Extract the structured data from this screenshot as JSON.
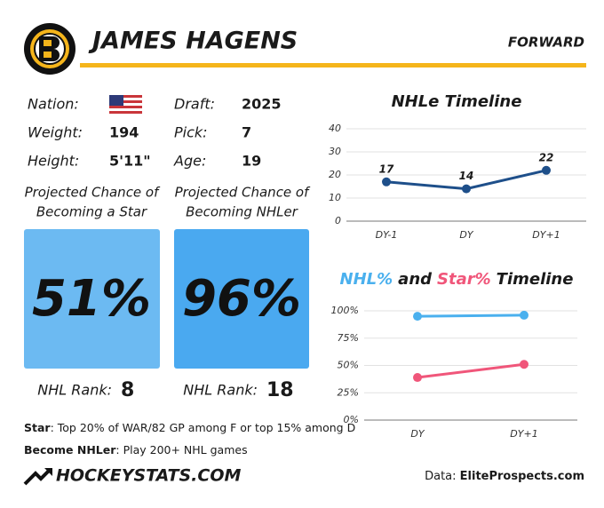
{
  "header": {
    "title": "JAMES HAGENS",
    "position": "FORWARD"
  },
  "bio": [
    {
      "label": "Nation:"
    },
    {
      "label": "Draft:",
      "value": 2025
    },
    {
      "label": "Weight:",
      "value": 194
    },
    {
      "label": "Pick:",
      "value": 7
    },
    {
      "label": "Height:",
      "value": "5'11\""
    },
    {
      "label": "Age:",
      "value": 19
    }
  ],
  "cards": [
    {
      "caption": [
        "Projected Chance of",
        "Becoming a Star"
      ],
      "value": "51%",
      "rank_label": "NHL Rank:",
      "rank": 8,
      "color": "#6cbaf2"
    },
    {
      "caption": [
        "Projected Chance of",
        "Becoming NHLer"
      ],
      "value": "96%",
      "rank_label": "NHL Rank:",
      "rank": 18,
      "color": "#4aa9f0"
    }
  ],
  "notes": [
    {
      "term": "Star",
      "text": ": Top 20% of WAR/82 GP among F or top 15% among D"
    },
    {
      "term": "Become NHLer",
      "text": ": Play 200+ NHL games"
    }
  ],
  "footer": {
    "brand": "HOCKEYSTATS.COM",
    "source_label": "Data:",
    "source": "EliteProspects.com"
  },
  "chart_data": [
    {
      "type": "line",
      "title": "NHLe Timeline",
      "categories": [
        "DY-1",
        "DY",
        "DY+1"
      ],
      "series": [
        {
          "color": "#1e4f8a",
          "values": [
            17,
            14,
            22
          ]
        }
      ],
      "ylim": [
        0,
        40
      ],
      "yticks": [
        0,
        10,
        20,
        30,
        40
      ],
      "grid": true,
      "data_labels": true
    },
    {
      "type": "line",
      "title": [
        "NHL%",
        "and",
        "Star%",
        "Timeline"
      ],
      "categories": [
        "DY",
        "DY+1"
      ],
      "series": [
        {
          "color": "#4ab0ee",
          "values": [
            95,
            96
          ]
        },
        {
          "color": "#f0567a",
          "values": [
            39,
            51
          ]
        }
      ],
      "ylim": [
        0,
        100
      ],
      "yticks": [
        {
          "value": 0,
          "label": "0%"
        },
        {
          "value": 25,
          "label": "25%"
        },
        {
          "value": 50,
          "label": "50%"
        },
        {
          "value": 75,
          "label": "75%"
        },
        {
          "value": 100,
          "label": "100%"
        }
      ],
      "grid": true,
      "data_labels": false
    }
  ]
}
